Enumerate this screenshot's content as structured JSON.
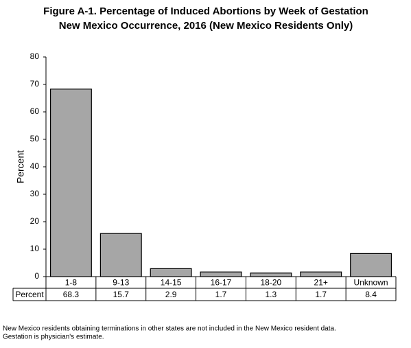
{
  "chart_data": {
    "type": "bar",
    "title": "Figure A-1. Percentage of Induced Abortions by Week of Gestation",
    "subtitle": "New Mexico Occurrence, 2016 (New Mexico Residents Only)",
    "y_label": "Percent",
    "table_row_label": "Percent",
    "categories": [
      "1-8",
      "9-13",
      "14-15",
      "16-17",
      "18-20",
      "21+",
      "Unknown"
    ],
    "values": [
      68.3,
      15.7,
      2.9,
      1.7,
      1.3,
      1.7,
      8.4
    ],
    "color": "#a6a6a6",
    "ylim": [
      0,
      80
    ],
    "yticks": [
      0,
      10,
      20,
      30,
      40,
      50,
      60,
      70,
      80
    ],
    "notes": [
      "New Mexico residents obtaining terminations in other states are not included in the New Mexico resident data.",
      "Gestation is physician's estimate."
    ]
  }
}
